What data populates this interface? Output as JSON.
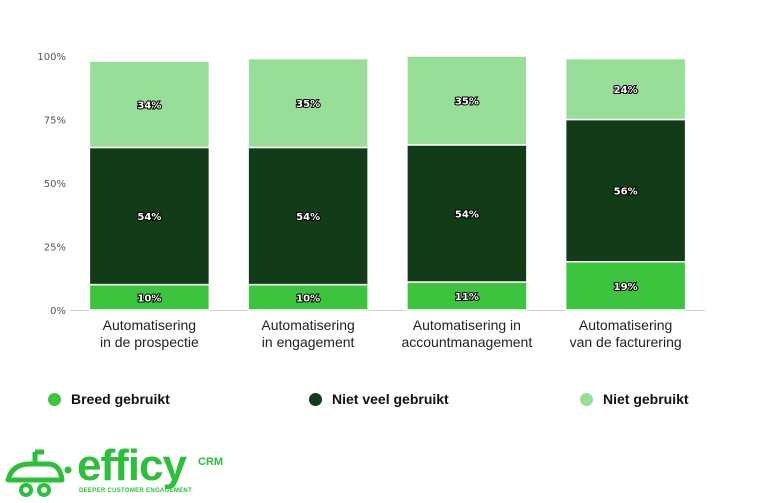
{
  "chart_data": {
    "type": "bar",
    "stacked": true,
    "ylim": [
      0,
      100
    ],
    "yticks": [
      "100%",
      "75%",
      "50%",
      "25%",
      "0%"
    ],
    "ytick_values": [
      100,
      75,
      50,
      25,
      0
    ],
    "categories": [
      [
        "Automatisering",
        "in de prospectie"
      ],
      [
        "Automatisering",
        "in engagement"
      ],
      [
        "Automatisering in",
        "accountmanagement"
      ],
      [
        "Automatisering",
        "van de facturering"
      ]
    ],
    "series": [
      {
        "name": "Breed gebruikt",
        "color": "#3cc43f",
        "values": [
          10,
          10,
          11,
          19
        ],
        "labels": [
          "10%",
          "10%",
          "11%",
          "19%"
        ]
      },
      {
        "name": "Niet veel gebruikt",
        "color": "#123b18",
        "values": [
          54,
          54,
          54,
          56
        ],
        "labels": [
          "54%",
          "54%",
          "54%",
          "56%"
        ]
      },
      {
        "name": "Niet gebruikt",
        "color": "#98dd98",
        "values": [
          34,
          35,
          35,
          24
        ],
        "labels": [
          "34%",
          "35%",
          "35%",
          "24%"
        ]
      }
    ]
  },
  "brand": {
    "name": "efficy",
    "suffix": "CRM",
    "tagline": "DEEPER CUSTOMER ENGAGEMENT",
    "color": "#2bbf3a"
  }
}
